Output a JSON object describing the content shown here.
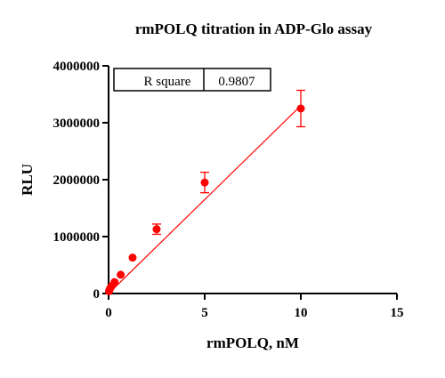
{
  "chart_data": {
    "type": "scatter",
    "title": "rmPOLQ titration in ADP-Glo assay",
    "xlabel": "rmPOLQ, nM",
    "ylabel": "RLU",
    "xlim": [
      0,
      15
    ],
    "ylim": [
      0,
      4000000
    ],
    "x_ticks": [
      0,
      5,
      10,
      15
    ],
    "y_ticks": [
      0,
      1000000,
      2000000,
      3000000,
      4000000
    ],
    "x_tick_labels": [
      "0",
      "5",
      "10",
      "15"
    ],
    "y_tick_labels": [
      "0",
      "1000000",
      "2000000",
      "3000000",
      "4000000"
    ],
    "grid": false,
    "series": [
      {
        "color": "#ff0000",
        "points": [
          {
            "x": 0.02,
            "y": 40000,
            "err": 0
          },
          {
            "x": 0.04,
            "y": 60000,
            "err": 0
          },
          {
            "x": 0.08,
            "y": 90000,
            "err": 0
          },
          {
            "x": 0.16,
            "y": 130000,
            "err": 0
          },
          {
            "x": 0.31,
            "y": 200000,
            "err": 0
          },
          {
            "x": 0.63,
            "y": 330000,
            "err": 0
          },
          {
            "x": 1.25,
            "y": 630000,
            "err": 0
          },
          {
            "x": 2.5,
            "y": 1130000,
            "err": 90000
          },
          {
            "x": 5,
            "y": 1950000,
            "err": 180000
          },
          {
            "x": 10,
            "y": 3250000,
            "err": 320000
          }
        ]
      }
    ],
    "fit_line": {
      "x": [
        0,
        10
      ],
      "y": [
        0,
        3300000
      ],
      "color": "#ff0000"
    },
    "annotation": {
      "label": "R square",
      "value": "0.9807"
    }
  }
}
